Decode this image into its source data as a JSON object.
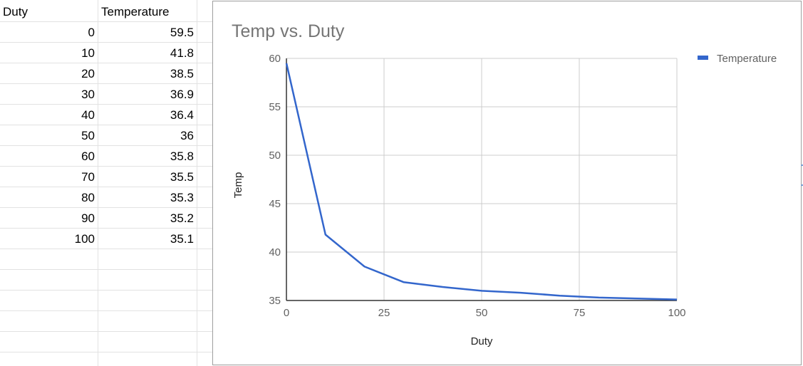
{
  "sheet": {
    "headers": [
      "Duty",
      "Temperature"
    ],
    "rows": [
      [
        "0",
        "59.5"
      ],
      [
        "10",
        "41.8"
      ],
      [
        "20",
        "38.5"
      ],
      [
        "30",
        "36.9"
      ],
      [
        "40",
        "36.4"
      ],
      [
        "50",
        "36"
      ],
      [
        "60",
        "35.8"
      ],
      [
        "70",
        "35.5"
      ],
      [
        "80",
        "35.3"
      ],
      [
        "90",
        "35.2"
      ],
      [
        "100",
        "35.1"
      ]
    ]
  },
  "colors": {
    "series": "#3366cc",
    "grid": "#cccccc",
    "axis": "#333333"
  },
  "chart_data": {
    "type": "line",
    "title": "Temp vs. Duty",
    "xlabel": "Duty",
    "ylabel": "Temp",
    "xlim": [
      0,
      100
    ],
    "ylim": [
      35,
      60
    ],
    "xticks": [
      "0",
      "25",
      "50",
      "75",
      "100"
    ],
    "yticks": [
      "35",
      "40",
      "45",
      "50",
      "55",
      "60"
    ],
    "grid": true,
    "legend": "right",
    "series": [
      {
        "name": "Temperature",
        "x": [
          0,
          10,
          20,
          30,
          40,
          50,
          60,
          70,
          80,
          90,
          100
        ],
        "y": [
          59.5,
          41.8,
          38.5,
          36.9,
          36.4,
          36,
          35.8,
          35.5,
          35.3,
          35.2,
          35.1
        ]
      }
    ]
  }
}
